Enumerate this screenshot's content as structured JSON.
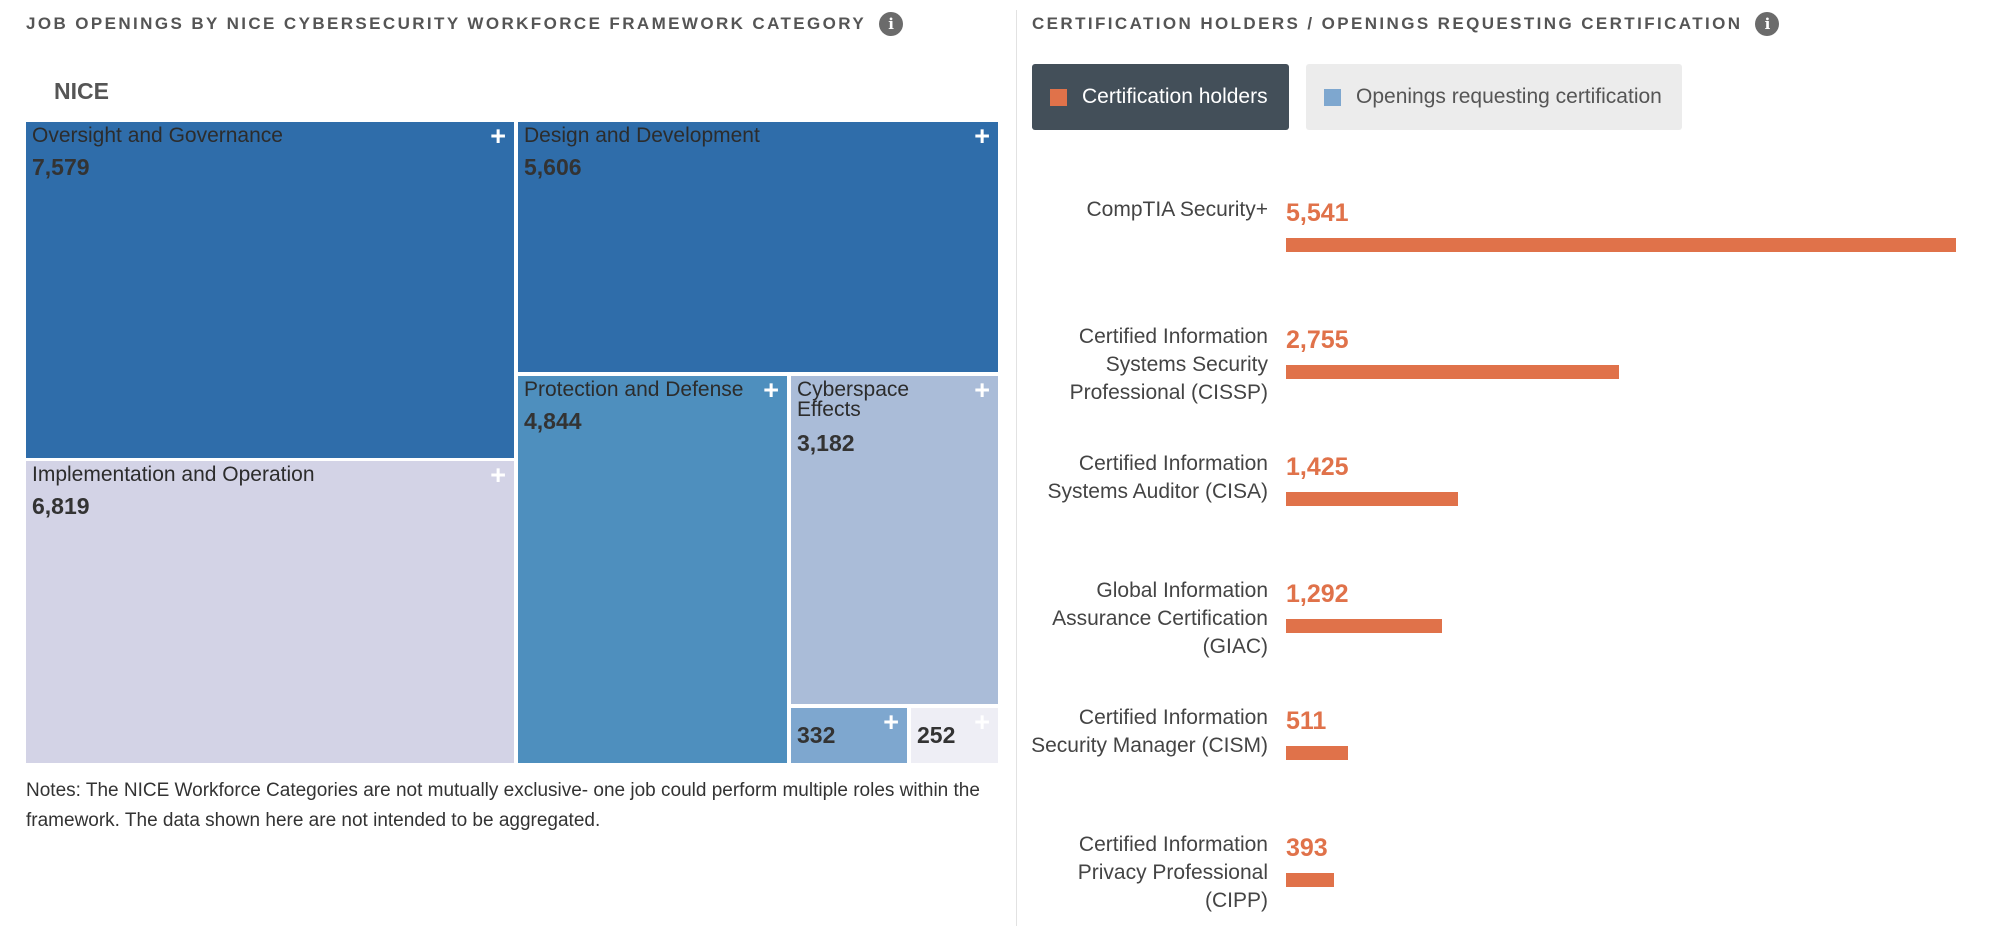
{
  "left_panel": {
    "title": "JOB OPENINGS BY NICE CYBERSECURITY WORKFORCE FRAMEWORK CATEGORY",
    "info_icon": "info-icon",
    "level_label": "NICE",
    "notes": "Notes: The NICE Workforce Categories are not mutually exclusive- one job could perform multiple roles within the framework. The data shown here are not intended to be aggregated."
  },
  "right_panel": {
    "title": "CERTIFICATION HOLDERS / OPENINGS REQUESTING CERTIFICATION",
    "info_icon": "info-icon",
    "legend": [
      {
        "label": "Certification holders",
        "color": "#e0724a",
        "active": true
      },
      {
        "label": "Openings requesting certification",
        "color": "#7ea7cf",
        "active": false
      }
    ]
  },
  "chart_data": [
    {
      "type": "treemap",
      "title": "JOB OPENINGS BY NICE CYBERSECURITY WORKFORCE FRAMEWORK CATEGORY",
      "level": "NICE",
      "categories": [
        "Oversight and Governance",
        "Design and Development",
        "Implementation and Operation",
        "Protection and Defense",
        "Cyberspace Effects",
        "",
        ""
      ],
      "values": [
        7579,
        5606,
        6819,
        4844,
        3182,
        332,
        252
      ],
      "value_labels": [
        "7,579",
        "5,606",
        "6,819",
        "4,844",
        "3,182",
        "332",
        "252"
      ],
      "colors": [
        "#2f6daa",
        "#2f6daa",
        "#d3d3e6",
        "#4e8fbe",
        "#aabcd8",
        "#7ea7cf",
        "#eeeef5"
      ],
      "expand_icon": "plus-icon"
    },
    {
      "type": "bar",
      "orientation": "horizontal",
      "title": "CERTIFICATION HOLDERS / OPENINGS REQUESTING CERTIFICATION",
      "categories": [
        "CompTIA Security+",
        "Certified Information Systems Security Professional (CISSP)",
        "Certified Information Systems Auditor (CISA)",
        "Global Information Assurance Certification (GIAC)",
        "Certified Information Security Manager (CISM)",
        "Certified Information Privacy Professional (CIPP)"
      ],
      "label_lines": [
        [
          "CompTIA Security+"
        ],
        [
          "Certified Information",
          "Systems Security",
          "Professional (CISSP)"
        ],
        [
          "Certified Information",
          "Systems Auditor (CISA)"
        ],
        [
          "Global Information",
          "Assurance Certification",
          "(GIAC)"
        ],
        [
          "Certified Information",
          "Security Manager (CISM)"
        ],
        [
          "Certified Information",
          "Privacy Professional",
          "(CIPP)"
        ]
      ],
      "series": [
        {
          "name": "Certification holders",
          "values": [
            5541,
            2755,
            1425,
            1292,
            511,
            393
          ],
          "value_labels": [
            "5,541",
            "2,755",
            "1,425",
            "1,292",
            "511",
            "393"
          ],
          "color": "#e0724a"
        }
      ],
      "xlim": [
        0,
        5541
      ],
      "legend": "top-left",
      "grid": false
    }
  ]
}
